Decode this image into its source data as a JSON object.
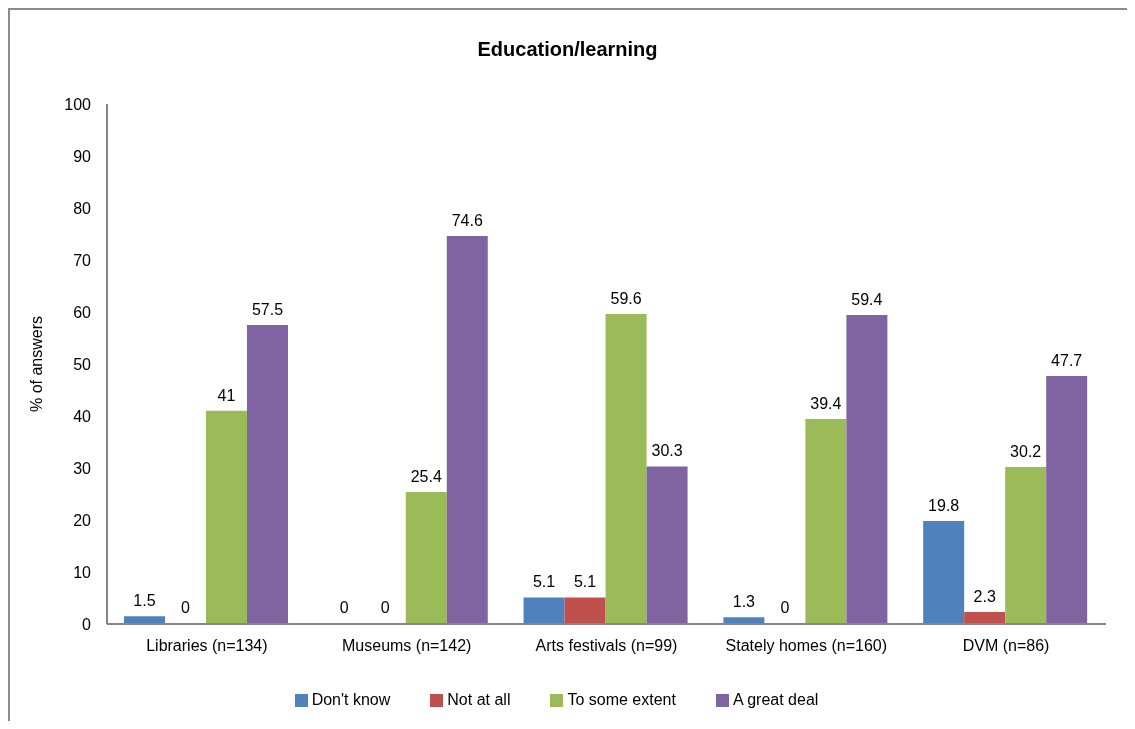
{
  "chart_data": {
    "type": "bar",
    "title": "Education/learning",
    "ylabel": "% of answers",
    "categories": [
      "Libraries (n=134)",
      "Museums (n=142)",
      "Arts festivals (n=99)",
      "Stately homes (n=160)",
      "DVM (n=86)"
    ],
    "series": [
      {
        "name": "Don't know",
        "color": "#4f81bd",
        "values": [
          1.5,
          0,
          5.1,
          1.3,
          19.8
        ]
      },
      {
        "name": "Not at all",
        "color": "#c0504d",
        "values": [
          0,
          0,
          5.1,
          0,
          2.3
        ]
      },
      {
        "name": "To some extent",
        "color": "#9bbb59",
        "values": [
          41,
          25.4,
          59.6,
          39.4,
          30.2
        ]
      },
      {
        "name": "A great deal",
        "color": "#8064a2",
        "values": [
          57.5,
          74.6,
          30.3,
          59.4,
          47.7
        ]
      }
    ],
    "ylim": [
      0,
      100
    ],
    "yticks": [
      0,
      10,
      20,
      30,
      40,
      50,
      60,
      70,
      80,
      90,
      100
    ],
    "legend": "bottom",
    "data_labels": true
  }
}
